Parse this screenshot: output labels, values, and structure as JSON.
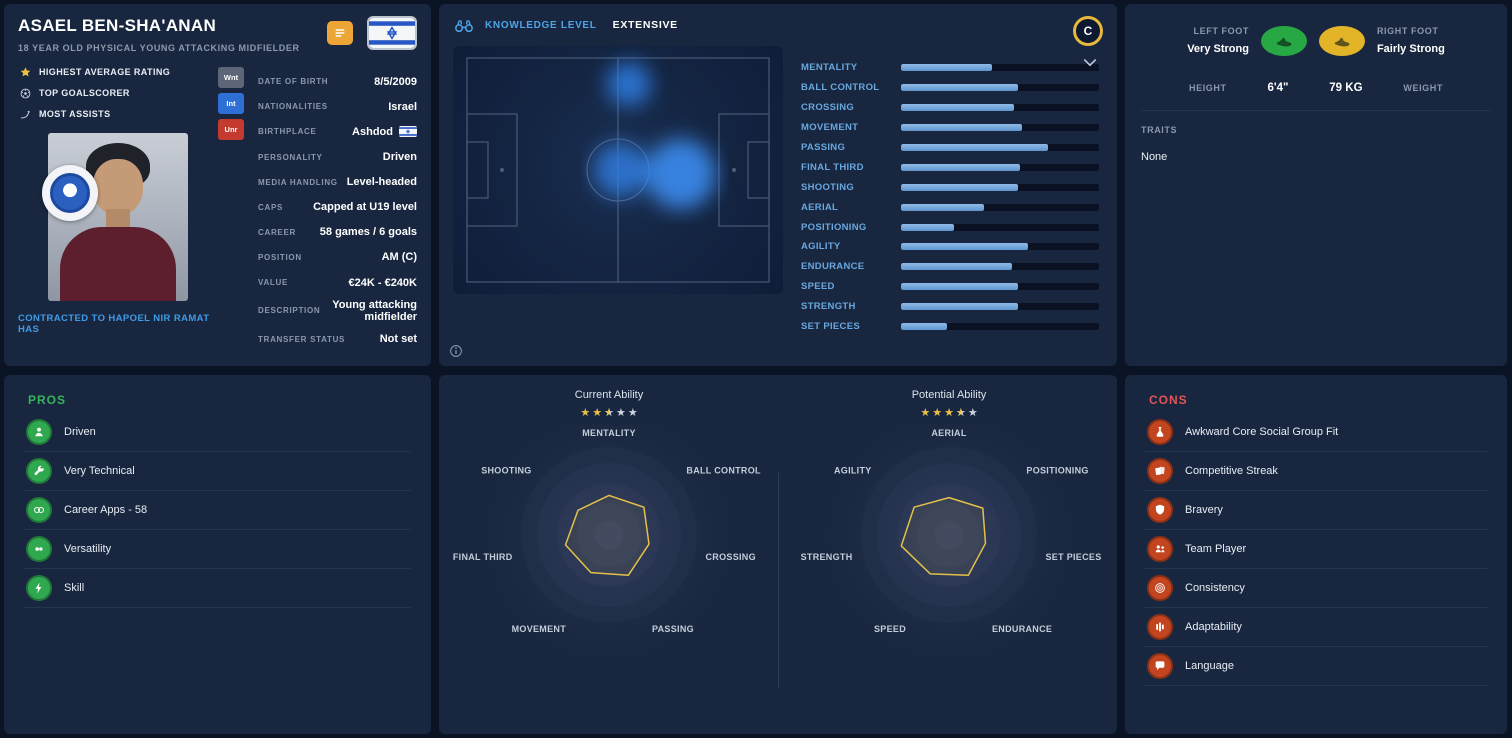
{
  "colors": {
    "accent": "#4fa3e8",
    "yellow": "#ecc243",
    "pros_icon": "#2fa84f",
    "cons_icon": "#c2451f",
    "left_foot": "#27a844",
    "right_foot": "#e3b428",
    "bar_fill": "#6fa4d8"
  },
  "profile": {
    "name": "ASAEL BEN-SHA'ANAN",
    "subtitle": "18 YEAR OLD PHYSICAL YOUNG ATTACKING MIDFIELDER",
    "achievements": [
      {
        "icon": "star-icon",
        "label": "HIGHEST AVERAGE RATING",
        "color": "#ecc243"
      },
      {
        "icon": "ball-icon",
        "label": "TOP GOALSCORER",
        "color": "#cfd8e6"
      },
      {
        "icon": "assist-icon",
        "label": "MOST ASSISTS",
        "color": "#cfd8e6"
      }
    ],
    "status_flags": [
      {
        "label": "Wnt",
        "color": "#5c6676"
      },
      {
        "label": "Int",
        "color": "#2e6fd6"
      },
      {
        "label": "Unr",
        "color": "#c23b2e"
      }
    ],
    "contracted": "CONTRACTED TO HAPOEL NIR RAMAT HAS",
    "details": [
      {
        "label": "DATE OF BIRTH",
        "value": "8/5/2009"
      },
      {
        "label": "NATIONALITIES",
        "value": "Israel"
      },
      {
        "label": "BIRTHPLACE",
        "value": "Ashdod",
        "flag": true
      },
      {
        "label": "PERSONALITY",
        "value": "Driven"
      },
      {
        "label": "MEDIA HANDLING",
        "value": "Level-headed"
      },
      {
        "label": "CAPS",
        "value": "Capped at U19 level"
      },
      {
        "label": "CAREER",
        "value": "58 games / 6 goals"
      },
      {
        "label": "POSITION",
        "value": "AM (C)"
      },
      {
        "label": "VALUE",
        "value": "€24K - €240K"
      },
      {
        "label": "DESCRIPTION",
        "value": "Young attacking midfielder"
      },
      {
        "label": "TRANSFER STATUS",
        "value": "Not set"
      }
    ]
  },
  "knowledge": {
    "label": "KNOWLEDGE LEVEL",
    "value": "EXTENSIVE",
    "badge": "C",
    "attributes": [
      {
        "name": "MENTALITY",
        "percent": 46
      },
      {
        "name": "BALL CONTROL",
        "percent": 59
      },
      {
        "name": "CROSSING",
        "percent": 57
      },
      {
        "name": "MOVEMENT",
        "percent": 61
      },
      {
        "name": "PASSING",
        "percent": 74
      },
      {
        "name": "FINAL THIRD",
        "percent": 60
      },
      {
        "name": "SHOOTING",
        "percent": 59
      },
      {
        "name": "AERIAL",
        "percent": 42
      },
      {
        "name": "POSITIONING",
        "percent": 27
      },
      {
        "name": "AGILITY",
        "percent": 64
      },
      {
        "name": "ENDURANCE",
        "percent": 56
      },
      {
        "name": "SPEED",
        "percent": 59
      },
      {
        "name": "STRENGTH",
        "percent": 59
      },
      {
        "name": "SET PIECES",
        "percent": 23
      }
    ]
  },
  "physical": {
    "left_foot_label": "LEFT FOOT",
    "left_foot_value": "Very Strong",
    "right_foot_label": "RIGHT FOOT",
    "right_foot_value": "Fairly Strong",
    "height_label": "HEIGHT",
    "height_value": "6'4\"",
    "weight_value": "79 KG",
    "weight_label": "WEIGHT",
    "traits_label": "TRAITS",
    "traits_value": "None"
  },
  "pros": {
    "title": "PROS",
    "items": [
      {
        "icon": "person-icon",
        "label": "Driven"
      },
      {
        "icon": "wrench-icon",
        "label": "Very Technical"
      },
      {
        "icon": "apps-icon",
        "label": "Career Apps - 58"
      },
      {
        "icon": "versatility-icon",
        "label": "Versatility"
      },
      {
        "icon": "skill-icon",
        "label": "Skill"
      }
    ]
  },
  "cons": {
    "title": "CONS",
    "items": [
      {
        "icon": "flask-icon",
        "label": "Awkward Core Social Group Fit"
      },
      {
        "icon": "cards-icon",
        "label": "Competitive Streak"
      },
      {
        "icon": "shield-icon",
        "label": "Bravery"
      },
      {
        "icon": "team-icon",
        "label": "Team Player"
      },
      {
        "icon": "target-icon",
        "label": "Consistency"
      },
      {
        "icon": "adapt-icon",
        "label": "Adaptability"
      },
      {
        "icon": "language-icon",
        "label": "Language"
      }
    ]
  },
  "ability": {
    "current_label": "Current Ability",
    "current_stars": 2.5,
    "potential_label": "Potential Ability",
    "potential_stars": 3.5,
    "max_stars": 5,
    "radars": [
      {
        "axes": [
          {
            "label": "MENTALITY",
            "value": 0.55
          },
          {
            "label": "BALL CONTROL",
            "value": 0.62
          },
          {
            "label": "CROSSING",
            "value": 0.57
          },
          {
            "label": "PASSING",
            "value": 0.62
          },
          {
            "label": "MOVEMENT",
            "value": 0.58
          },
          {
            "label": "FINAL THIRD",
            "value": 0.62
          },
          {
            "label": "SHOOTING",
            "value": 0.55
          }
        ]
      },
      {
        "axes": [
          {
            "label": "AERIAL",
            "value": 0.52
          },
          {
            "label": "POSITIONING",
            "value": 0.6
          },
          {
            "label": "SET PIECES",
            "value": 0.52
          },
          {
            "label": "ENDURANCE",
            "value": 0.62
          },
          {
            "label": "SPEED",
            "value": 0.6
          },
          {
            "label": "STRENGTH",
            "value": 0.68
          },
          {
            "label": "AGILITY",
            "value": 0.62
          }
        ]
      }
    ]
  }
}
